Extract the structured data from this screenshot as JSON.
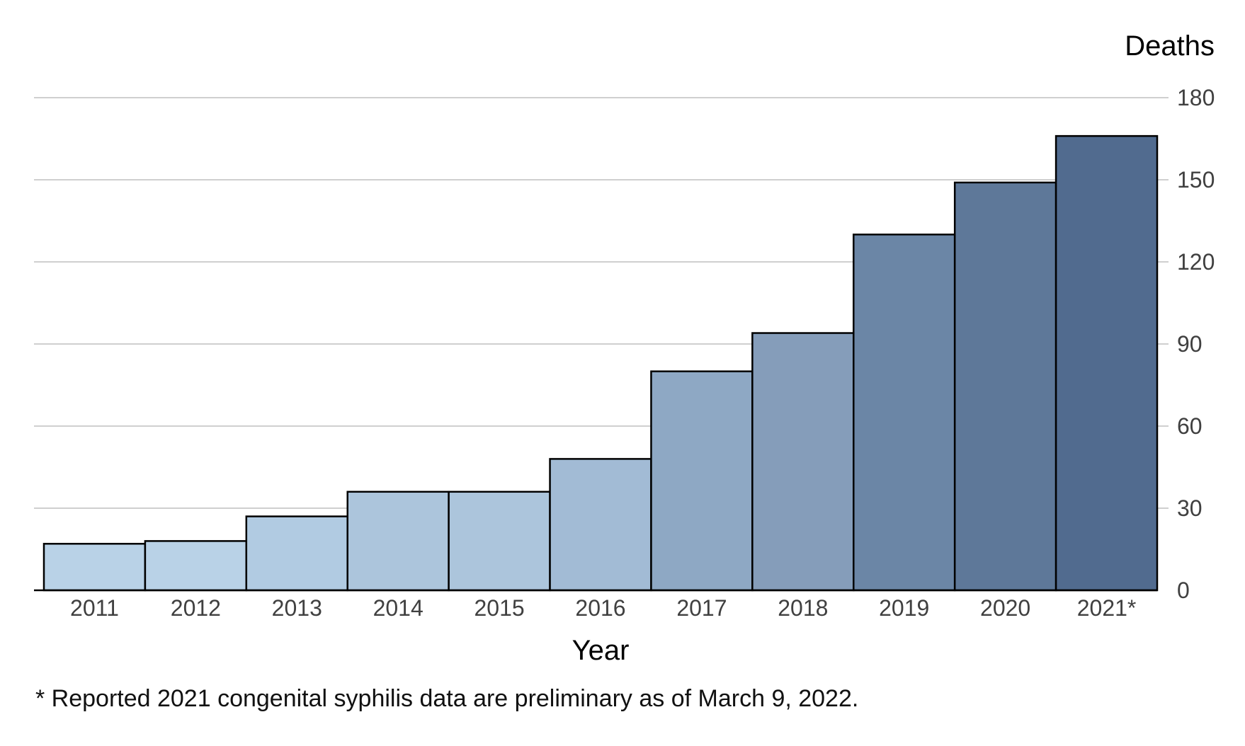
{
  "chart_data": {
    "type": "bar",
    "categories": [
      "2011",
      "2012",
      "2013",
      "2014",
      "2015",
      "2016",
      "2017",
      "2018",
      "2019",
      "2020",
      "2021*"
    ],
    "values": [
      17,
      18,
      27,
      36,
      36,
      48,
      80,
      94,
      130,
      149,
      166
    ],
    "xlabel": "Year",
    "ylabel": "Deaths",
    "ylim": [
      0,
      180
    ],
    "yticks": [
      0,
      30,
      60,
      90,
      120,
      150,
      180
    ],
    "y_axis_position": "right",
    "grid": true,
    "legend": "none",
    "bar_colors": [
      "#b9d2e7",
      "#b9d2e7",
      "#b1cbe2",
      "#acc5dc",
      "#acc5dc",
      "#a2bbd5",
      "#8ea8c4",
      "#859dba",
      "#6b86a6",
      "#5e7899",
      "#516b8f"
    ],
    "bar_edge_color": "#000000",
    "grid_color": "#bfbfbf"
  },
  "footnote": "* Reported 2021 congenital syphilis data are preliminary as of March 9, 2022."
}
